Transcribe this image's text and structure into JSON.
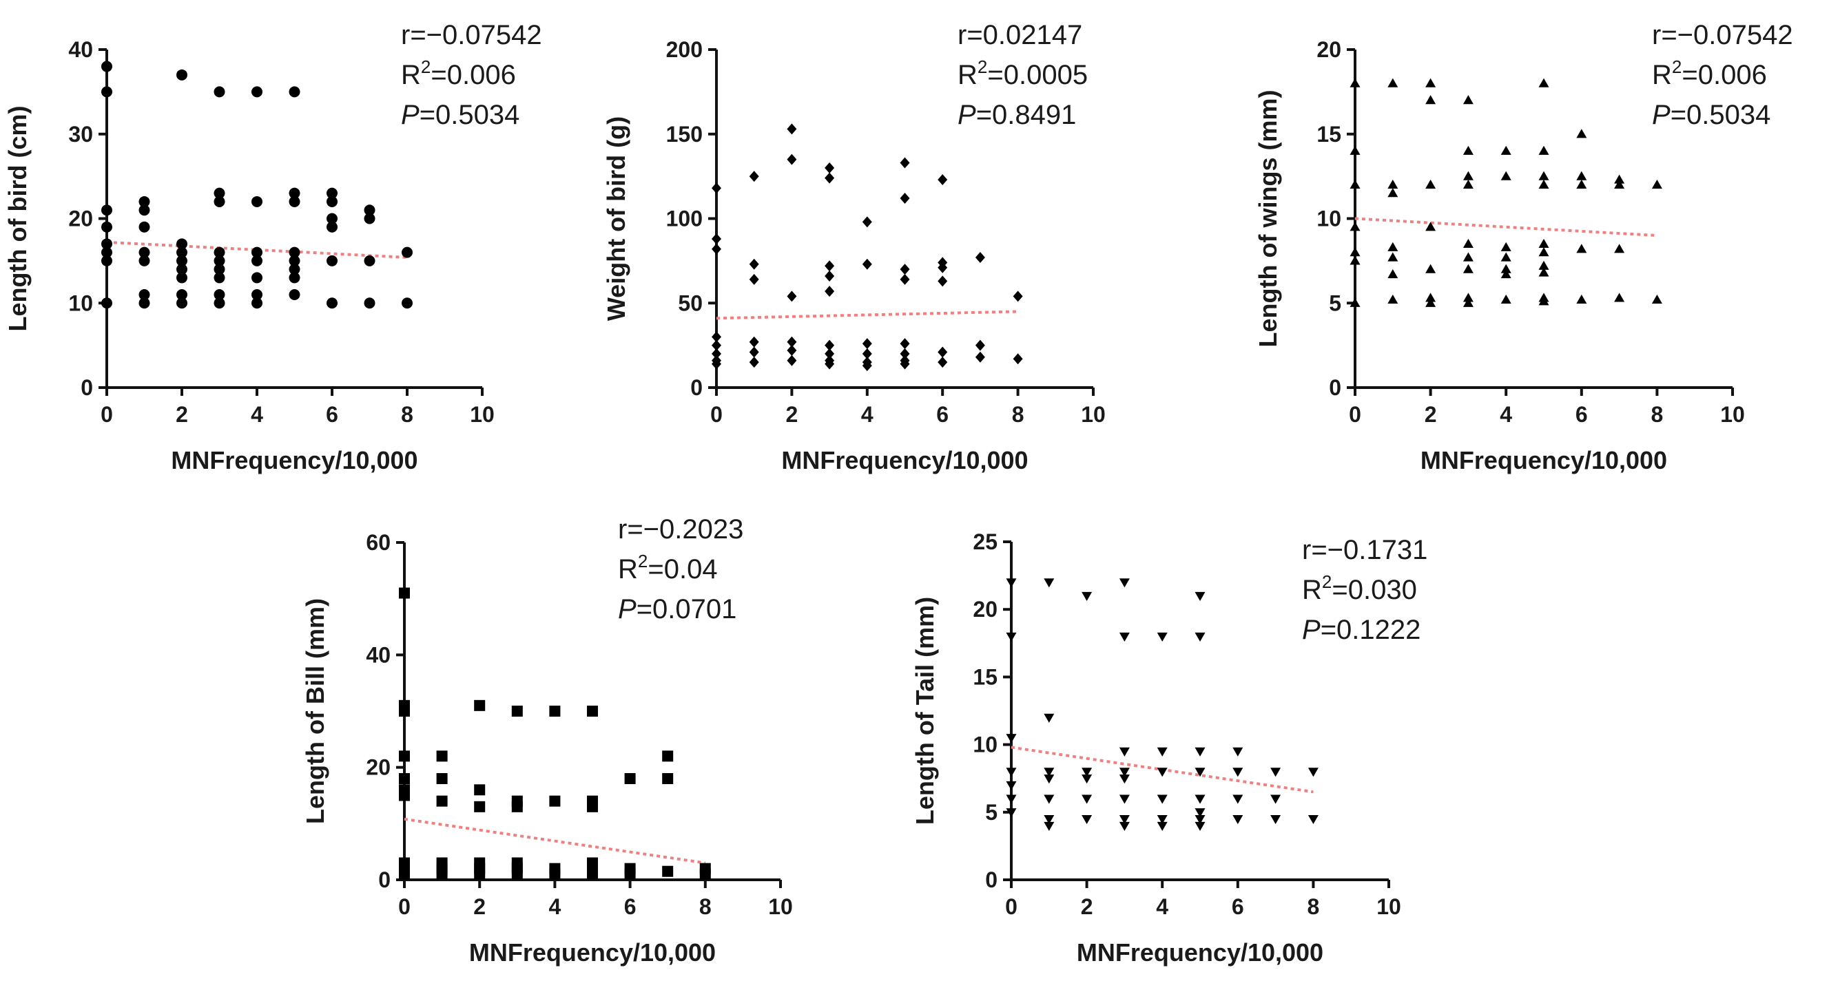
{
  "chart_data": [
    {
      "type": "scatter",
      "xlabel": "MNFrequency/10,000",
      "ylabel": "Length of bird (cm)",
      "xlim": [
        0,
        10
      ],
      "ylim": [
        0,
        40
      ],
      "xticks": [
        0,
        2,
        4,
        6,
        8,
        10
      ],
      "yticks": [
        0,
        10,
        20,
        30,
        40
      ],
      "marker": "circle",
      "stats": {
        "r": "r=−0.07542",
        "r2_prefix": "R",
        "r2_value": "=0.006",
        "p_prefix": "P",
        "p_value": "=0.5034"
      },
      "trend": {
        "x": [
          0,
          8
        ],
        "y": [
          17.2,
          15.4
        ]
      },
      "points": [
        [
          0,
          38
        ],
        [
          0,
          35
        ],
        [
          0,
          21
        ],
        [
          0,
          19
        ],
        [
          0,
          17
        ],
        [
          0,
          16
        ],
        [
          0,
          15
        ],
        [
          0,
          10
        ],
        [
          1,
          22
        ],
        [
          1,
          21
        ],
        [
          1,
          19
        ],
        [
          1,
          16
        ],
        [
          1,
          15
        ],
        [
          1,
          11
        ],
        [
          1,
          10
        ],
        [
          2,
          37
        ],
        [
          2,
          17
        ],
        [
          2,
          16
        ],
        [
          2,
          15
        ],
        [
          2,
          14
        ],
        [
          2,
          13
        ],
        [
          2,
          11
        ],
        [
          2,
          10
        ],
        [
          3,
          35
        ],
        [
          3,
          23
        ],
        [
          3,
          22
        ],
        [
          3,
          16
        ],
        [
          3,
          15
        ],
        [
          3,
          14
        ],
        [
          3,
          13
        ],
        [
          3,
          11
        ],
        [
          3,
          10
        ],
        [
          4,
          35
        ],
        [
          4,
          22
        ],
        [
          4,
          16
        ],
        [
          4,
          15
        ],
        [
          4,
          13
        ],
        [
          4,
          11
        ],
        [
          4,
          10
        ],
        [
          5,
          35
        ],
        [
          5,
          23
        ],
        [
          5,
          22
        ],
        [
          5,
          16
        ],
        [
          5,
          15
        ],
        [
          5,
          14
        ],
        [
          5,
          13
        ],
        [
          5,
          11
        ],
        [
          6,
          23
        ],
        [
          6,
          22
        ],
        [
          6,
          20
        ],
        [
          6,
          19
        ],
        [
          6,
          15
        ],
        [
          6,
          10
        ],
        [
          7,
          21
        ],
        [
          7,
          20
        ],
        [
          7,
          15
        ],
        [
          7,
          10
        ],
        [
          8,
          16
        ],
        [
          8,
          10
        ]
      ]
    },
    {
      "type": "scatter",
      "xlabel": "MNFrequency/10,000",
      "ylabel": "Weight of bird (g)",
      "xlim": [
        0,
        10
      ],
      "ylim": [
        0,
        200
      ],
      "xticks": [
        0,
        2,
        4,
        6,
        8,
        10
      ],
      "yticks": [
        0,
        50,
        100,
        150,
        200
      ],
      "marker": "diamond",
      "stats": {
        "r": "r=0.02147",
        "r2_prefix": "R",
        "r2_value": "=0.0005",
        "p_prefix": "P",
        "p_value": "=0.8491"
      },
      "trend": {
        "x": [
          0,
          8
        ],
        "y": [
          41,
          45
        ]
      },
      "points": [
        [
          0,
          118
        ],
        [
          0,
          88
        ],
        [
          0,
          82
        ],
        [
          0,
          30
        ],
        [
          0,
          25
        ],
        [
          0,
          20
        ],
        [
          0,
          16
        ],
        [
          0,
          14
        ],
        [
          1,
          125
        ],
        [
          1,
          73
        ],
        [
          1,
          64
        ],
        [
          1,
          27
        ],
        [
          1,
          21
        ],
        [
          1,
          15
        ],
        [
          2,
          153
        ],
        [
          2,
          135
        ],
        [
          2,
          54
        ],
        [
          2,
          27
        ],
        [
          2,
          22
        ],
        [
          2,
          16
        ],
        [
          3,
          130
        ],
        [
          3,
          124
        ],
        [
          3,
          72
        ],
        [
          3,
          66
        ],
        [
          3,
          57
        ],
        [
          3,
          25
        ],
        [
          3,
          20
        ],
        [
          3,
          16
        ],
        [
          3,
          14
        ],
        [
          4,
          98
        ],
        [
          4,
          73
        ],
        [
          4,
          26
        ],
        [
          4,
          20
        ],
        [
          4,
          15
        ],
        [
          4,
          13
        ],
        [
          5,
          133
        ],
        [
          5,
          112
        ],
        [
          5,
          70
        ],
        [
          5,
          64
        ],
        [
          5,
          26
        ],
        [
          5,
          20
        ],
        [
          5,
          16
        ],
        [
          5,
          14
        ],
        [
          6,
          123
        ],
        [
          6,
          74
        ],
        [
          6,
          71
        ],
        [
          6,
          63
        ],
        [
          6,
          21
        ],
        [
          6,
          15
        ],
        [
          7,
          77
        ],
        [
          7,
          25
        ],
        [
          7,
          18
        ],
        [
          8,
          54
        ],
        [
          8,
          17
        ]
      ]
    },
    {
      "type": "scatter",
      "xlabel": "MNFrequency/10,000",
      "ylabel": "Length of wings (mm)",
      "xlim": [
        0,
        10
      ],
      "ylim": [
        0,
        20
      ],
      "xticks": [
        0,
        2,
        4,
        6,
        8,
        10
      ],
      "yticks": [
        0,
        5,
        10,
        15,
        20
      ],
      "marker": "triangle-up",
      "stats": {
        "r": "r=−0.07542",
        "r2_prefix": "R",
        "r2_value": "=0.006",
        "p_prefix": "P",
        "p_value": "=0.5034"
      },
      "trend": {
        "x": [
          0,
          8
        ],
        "y": [
          10.0,
          9.0
        ]
      },
      "points": [
        [
          0,
          18
        ],
        [
          0,
          14
        ],
        [
          0,
          12
        ],
        [
          0,
          9.5
        ],
        [
          0,
          8
        ],
        [
          0,
          7.5
        ],
        [
          0,
          5
        ],
        [
          1,
          18
        ],
        [
          1,
          12
        ],
        [
          1,
          11.5
        ],
        [
          1,
          8.3
        ],
        [
          1,
          7.7
        ],
        [
          1,
          6.7
        ],
        [
          1,
          5.2
        ],
        [
          2,
          18
        ],
        [
          2,
          17
        ],
        [
          2,
          12
        ],
        [
          2,
          9.5
        ],
        [
          2,
          7
        ],
        [
          2,
          5.3
        ],
        [
          2,
          5
        ],
        [
          3,
          17
        ],
        [
          3,
          14
        ],
        [
          3,
          12.5
        ],
        [
          3,
          12
        ],
        [
          3,
          8.5
        ],
        [
          3,
          7.7
        ],
        [
          3,
          7
        ],
        [
          3,
          5.3
        ],
        [
          3,
          5
        ],
        [
          4,
          14
        ],
        [
          4,
          12.5
        ],
        [
          4,
          8.3
        ],
        [
          4,
          7.7
        ],
        [
          4,
          7
        ],
        [
          4,
          6.7
        ],
        [
          4,
          5.2
        ],
        [
          5,
          18
        ],
        [
          5,
          14
        ],
        [
          5,
          12.5
        ],
        [
          5,
          12
        ],
        [
          5,
          8.5
        ],
        [
          5,
          8
        ],
        [
          5,
          7.2
        ],
        [
          5,
          6.8
        ],
        [
          5,
          5.3
        ],
        [
          5,
          5.1
        ],
        [
          6,
          15
        ],
        [
          6,
          12.5
        ],
        [
          6,
          12
        ],
        [
          6,
          8.2
        ],
        [
          6,
          5.2
        ],
        [
          7,
          12.3
        ],
        [
          7,
          12
        ],
        [
          7,
          8.2
        ],
        [
          7,
          5.3
        ],
        [
          8,
          12
        ],
        [
          8,
          5.2
        ]
      ]
    },
    {
      "type": "scatter",
      "xlabel": "MNFrequency/10,000",
      "ylabel": "Length of Bill (mm)",
      "xlim": [
        0,
        10
      ],
      "ylim": [
        0,
        60
      ],
      "xticks": [
        0,
        2,
        4,
        6,
        8,
        10
      ],
      "yticks": [
        0,
        20,
        40,
        60
      ],
      "marker": "square",
      "stats": {
        "r": "r=−0.2023",
        "r2_prefix": "R",
        "r2_value": "=0.04",
        "p_prefix": "P",
        "p_value": "=0.0701"
      },
      "trend": {
        "x": [
          0,
          8
        ],
        "y": [
          10.8,
          3.0
        ]
      },
      "points": [
        [
          0,
          51
        ],
        [
          0,
          31
        ],
        [
          0,
          30
        ],
        [
          0,
          22
        ],
        [
          0,
          18
        ],
        [
          0,
          16
        ],
        [
          0,
          15
        ],
        [
          0,
          3
        ],
        [
          0,
          2
        ],
        [
          0,
          1
        ],
        [
          1,
          22
        ],
        [
          1,
          18
        ],
        [
          1,
          14
        ],
        [
          1,
          3
        ],
        [
          1,
          2
        ],
        [
          1,
          1
        ],
        [
          2,
          31
        ],
        [
          2,
          16
        ],
        [
          2,
          13
        ],
        [
          2,
          3
        ],
        [
          2,
          2
        ],
        [
          2,
          1
        ],
        [
          3,
          30
        ],
        [
          3,
          14
        ],
        [
          3,
          13
        ],
        [
          3,
          3
        ],
        [
          3,
          2
        ],
        [
          3,
          1
        ],
        [
          4,
          30
        ],
        [
          4,
          14
        ],
        [
          4,
          2
        ],
        [
          4,
          1
        ],
        [
          5,
          30
        ],
        [
          5,
          14
        ],
        [
          5,
          13
        ],
        [
          5,
          3
        ],
        [
          5,
          2
        ],
        [
          5,
          1
        ],
        [
          6,
          18
        ],
        [
          6,
          2
        ],
        [
          6,
          1
        ],
        [
          7,
          22
        ],
        [
          7,
          18
        ],
        [
          7,
          1.5
        ],
        [
          8,
          2
        ],
        [
          8,
          1
        ]
      ]
    },
    {
      "type": "scatter",
      "xlabel": "MNFrequency/10,000",
      "ylabel": "Length of Tail (mm)",
      "xlim": [
        0,
        10
      ],
      "ylim": [
        0,
        25
      ],
      "xticks": [
        0,
        2,
        4,
        6,
        8,
        10
      ],
      "yticks": [
        0,
        5,
        10,
        15,
        20,
        25
      ],
      "marker": "triangle-down",
      "stats": {
        "r": "r=−0.1731",
        "r2_prefix": "R",
        "r2_value": "=0.030",
        "p_prefix": "P",
        "p_value": "=0.1222"
      },
      "trend": {
        "x": [
          0,
          8
        ],
        "y": [
          9.8,
          6.5
        ]
      },
      "points": [
        [
          0,
          22
        ],
        [
          0,
          18
        ],
        [
          0,
          10.5
        ],
        [
          0,
          8
        ],
        [
          0,
          7
        ],
        [
          0,
          6
        ],
        [
          0,
          5
        ],
        [
          1,
          22
        ],
        [
          1,
          12
        ],
        [
          1,
          8
        ],
        [
          1,
          7.5
        ],
        [
          1,
          6
        ],
        [
          1,
          4.5
        ],
        [
          1,
          4
        ],
        [
          2,
          21
        ],
        [
          2,
          8
        ],
        [
          2,
          7.5
        ],
        [
          2,
          6
        ],
        [
          2,
          4.5
        ],
        [
          3,
          22
        ],
        [
          3,
          18
        ],
        [
          3,
          9.5
        ],
        [
          3,
          8
        ],
        [
          3,
          7.5
        ],
        [
          3,
          6
        ],
        [
          3,
          4.5
        ],
        [
          3,
          4
        ],
        [
          4,
          18
        ],
        [
          4,
          9.5
        ],
        [
          4,
          8
        ],
        [
          4,
          6
        ],
        [
          4,
          4.5
        ],
        [
          4,
          4
        ],
        [
          5,
          21
        ],
        [
          5,
          18
        ],
        [
          5,
          9.5
        ],
        [
          5,
          8
        ],
        [
          5,
          6
        ],
        [
          5,
          5
        ],
        [
          5,
          4.5
        ],
        [
          5,
          4
        ],
        [
          6,
          9.5
        ],
        [
          6,
          8
        ],
        [
          6,
          6
        ],
        [
          6,
          4.5
        ],
        [
          7,
          8
        ],
        [
          7,
          6
        ],
        [
          7,
          4.5
        ],
        [
          8,
          8
        ],
        [
          8,
          4.5
        ]
      ]
    }
  ]
}
